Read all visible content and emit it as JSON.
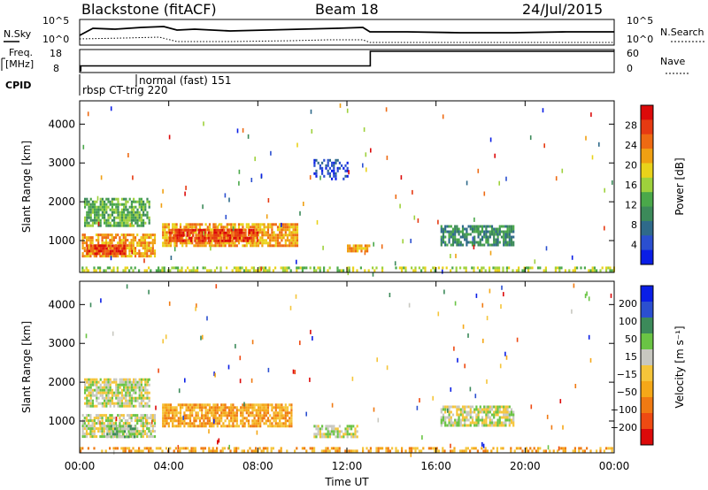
{
  "header": {
    "station": "Blackstone (fitACF)",
    "beam": "Beam 18",
    "date": "24/Jul/2015"
  },
  "status_panel": {
    "nsky_label": "N.Sky",
    "nsearch_label": "N.Search",
    "freq_label_1": "Freq.",
    "freq_label_2": "[MHz]",
    "nave_label": "Nave",
    "cpid_label": "CPID",
    "count_ticks": [
      "10^5",
      "10^0"
    ],
    "freq_ticks": [
      "18",
      "8"
    ],
    "nave_ticks": [
      "60",
      "0"
    ],
    "cpid_entries": [
      {
        "label": "rbsp CT-trig 220",
        "start_hour": 0.0
      },
      {
        "label": "normal (fast) 151",
        "start_hour": 2.55
      }
    ],
    "freq_series": {
      "hours": [
        0,
        0.05,
        0.05,
        13.05,
        13.05,
        24
      ],
      "mhz": [
        8,
        8,
        10.5,
        10.5,
        18,
        18
      ]
    }
  },
  "chart_data": [
    {
      "type": "heatmap",
      "name": "power",
      "xlabel": "",
      "ylabel": "Slant Range [km]",
      "x_ticks": [
        "00:00",
        "04:00",
        "08:00",
        "12:00",
        "16:00",
        "20:00",
        "00:00"
      ],
      "x_range_hours": [
        0,
        24
      ],
      "ylim": [
        180,
        4600
      ],
      "y_ticks": [
        1000,
        2000,
        3000,
        4000
      ],
      "colorbar": {
        "label": "Power [dB]",
        "ticks": [
          "28",
          "24",
          "20",
          "16",
          "12",
          "8",
          "4"
        ],
        "colors": [
          "#0a1ee6",
          "#2b4fd0",
          "#2f6a8a",
          "#3c8a5a",
          "#4aa84a",
          "#9ed13c",
          "#e9d21a",
          "#f0a012",
          "#ee6a12",
          "#e63a12",
          "#dc0a0a"
        ]
      },
      "regions": [
        {
          "hours": [
            0.1,
            3.4
          ],
          "range_km": [
            620,
            1180
          ],
          "level": 7
        },
        {
          "hours": [
            0.3,
            2.0
          ],
          "range_km": [
            650,
            900
          ],
          "level": 9
        },
        {
          "hours": [
            0.2,
            3.1
          ],
          "range_km": [
            1400,
            2100
          ],
          "level": 4
        },
        {
          "hours": [
            3.7,
            9.8
          ],
          "range_km": [
            900,
            1450
          ],
          "level": 7
        },
        {
          "hours": [
            4.0,
            8.0
          ],
          "range_km": [
            1000,
            1300
          ],
          "level": 9
        },
        {
          "hours": [
            10.5,
            12.0
          ],
          "range_km": [
            2600,
            3100
          ],
          "level": 1
        },
        {
          "hours": [
            12.0,
            13.0
          ],
          "range_km": [
            700,
            900
          ],
          "level": 7
        },
        {
          "hours": [
            16.2,
            19.5
          ],
          "range_km": [
            900,
            1400
          ],
          "level": 3
        },
        {
          "hours": [
            0.0,
            24.0
          ],
          "range_km": [
            200,
            330
          ],
          "level": 5
        }
      ]
    },
    {
      "type": "heatmap",
      "name": "velocity",
      "xlabel": "Time UT",
      "ylabel": "Slant Range [km]",
      "x_ticks": [
        "00:00",
        "04:00",
        "08:00",
        "12:00",
        "16:00",
        "20:00",
        "00:00"
      ],
      "x_range_hours": [
        0,
        24
      ],
      "ylim": [
        180,
        4600
      ],
      "y_ticks": [
        1000,
        2000,
        3000,
        4000
      ],
      "colorbar": {
        "label": "Velocity [m s⁻¹]",
        "ticks": [
          "200",
          "100",
          "50",
          "15",
          "−15",
          "−50",
          "−100",
          "−200"
        ],
        "colors": [
          "#dc0a0a",
          "#ee4a12",
          "#f07a12",
          "#f5a818",
          "#f5c53a",
          "#c8c8c0",
          "#6ac444",
          "#3c8a5a",
          "#2b4fd0",
          "#0a1ee6"
        ]
      },
      "regions": [
        {
          "hours": [
            0.1,
            3.4
          ],
          "range_km": [
            620,
            1180
          ],
          "level": 5
        },
        {
          "hours": [
            1.2,
            2.5
          ],
          "range_km": [
            620,
            900
          ],
          "level": 6
        },
        {
          "hours": [
            0.2,
            3.1
          ],
          "range_km": [
            1400,
            2100
          ],
          "level": 5
        },
        {
          "hours": [
            3.7,
            9.5
          ],
          "range_km": [
            900,
            1450
          ],
          "level": 3
        },
        {
          "hours": [
            10.5,
            12.5
          ],
          "range_km": [
            600,
            900
          ],
          "level": 5
        },
        {
          "hours": [
            16.2,
            19.5
          ],
          "range_km": [
            900,
            1400
          ],
          "level": 5
        },
        {
          "hours": [
            0.0,
            24.0
          ],
          "range_km": [
            200,
            330
          ],
          "level": 3
        }
      ]
    }
  ]
}
